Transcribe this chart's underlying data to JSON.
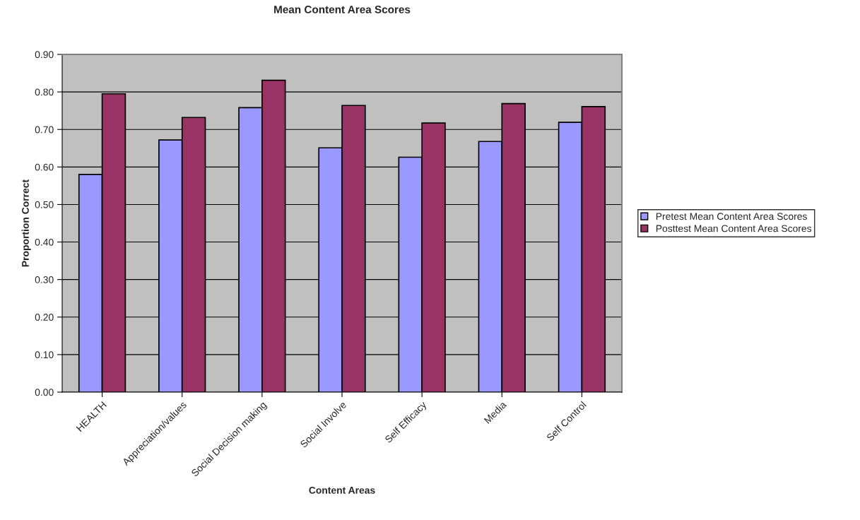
{
  "chart_data": {
    "type": "bar",
    "title": "Mean Content Area Scores",
    "xlabel": "Content Areas",
    "ylabel": "Proportion Correct",
    "categories": [
      "HEALTH",
      "Appreciation/values",
      "Social Decision making",
      "Social Involve",
      "Self Efficacy",
      "Media",
      "Self Control"
    ],
    "series": [
      {
        "name": "Pretest Mean Content Area Scores",
        "color": "#9999ff",
        "values": [
          0.58,
          0.672,
          0.758,
          0.651,
          0.626,
          0.668,
          0.719
        ]
      },
      {
        "name": "Posttest Mean Content Area Scores",
        "color": "#993366",
        "values": [
          0.795,
          0.732,
          0.831,
          0.764,
          0.717,
          0.769,
          0.761
        ]
      }
    ],
    "ylim": [
      0,
      0.9
    ],
    "yticks": [
      {
        "value": 0,
        "label": "0.00"
      },
      {
        "value": 0.1,
        "label": "0.10"
      },
      {
        "value": 0.2,
        "label": "0.20"
      },
      {
        "value": 0.3,
        "label": "0.30"
      },
      {
        "value": 0.4,
        "label": "0.40"
      },
      {
        "value": 0.5,
        "label": "0.50"
      },
      {
        "value": 0.6,
        "label": "0.60"
      },
      {
        "value": 0.7,
        "label": "0.70"
      },
      {
        "value": 0.8,
        "label": "0.80"
      },
      {
        "value": 0.9,
        "label": "0.90"
      }
    ],
    "grid": "y",
    "legend": "right"
  }
}
